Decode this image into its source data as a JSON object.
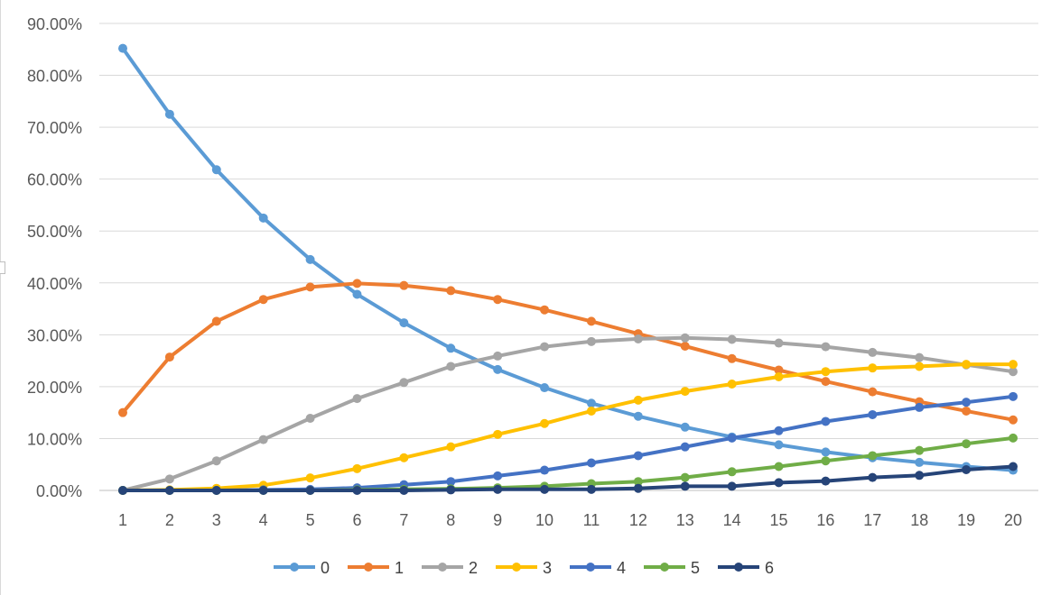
{
  "chart_data": {
    "type": "line",
    "title": "",
    "xlabel": "",
    "ylabel": "",
    "categories": [
      "1",
      "2",
      "3",
      "4",
      "5",
      "6",
      "7",
      "8",
      "9",
      "10",
      "11",
      "12",
      "13",
      "14",
      "15",
      "16",
      "17",
      "18",
      "19",
      "20"
    ],
    "y_ticks": [
      "0.00%",
      "10.00%",
      "20.00%",
      "30.00%",
      "40.00%",
      "50.00%",
      "60.00%",
      "70.00%",
      "80.00%",
      "90.00%"
    ],
    "ylim": [
      0,
      90
    ],
    "grid": true,
    "legend_position": "bottom",
    "series": [
      {
        "name": "0",
        "color": "#5B9BD5",
        "values": [
          85.2,
          72.5,
          61.8,
          52.5,
          44.5,
          37.8,
          32.3,
          27.4,
          23.3,
          19.8,
          16.8,
          14.3,
          12.2,
          10.3,
          8.8,
          7.4,
          6.3,
          5.4,
          4.6,
          3.9
        ]
      },
      {
        "name": "1",
        "color": "#ED7D31",
        "values": [
          15.0,
          25.7,
          32.6,
          36.8,
          39.2,
          39.9,
          39.5,
          38.5,
          36.8,
          34.8,
          32.6,
          30.2,
          27.8,
          25.4,
          23.2,
          21.0,
          19.0,
          17.1,
          15.3,
          13.6
        ]
      },
      {
        "name": "2",
        "color": "#A5A5A5",
        "values": [
          0.0,
          2.2,
          5.7,
          9.8,
          13.9,
          17.7,
          20.8,
          23.9,
          25.9,
          27.7,
          28.7,
          29.2,
          29.4,
          29.1,
          28.4,
          27.7,
          26.6,
          25.6,
          24.2,
          22.9
        ]
      },
      {
        "name": "3",
        "color": "#FFC000",
        "values": [
          0.0,
          0.1,
          0.4,
          1.0,
          2.4,
          4.2,
          6.3,
          8.4,
          10.8,
          12.9,
          15.3,
          17.4,
          19.1,
          20.5,
          21.9,
          22.9,
          23.6,
          23.9,
          24.3,
          24.3
        ]
      },
      {
        "name": "4",
        "color": "#4472C4",
        "values": [
          0.0,
          0.0,
          0.0,
          0.1,
          0.2,
          0.5,
          1.1,
          1.7,
          2.8,
          3.9,
          5.3,
          6.7,
          8.4,
          10.1,
          11.5,
          13.3,
          14.6,
          16.0,
          17.0,
          18.1
        ]
      },
      {
        "name": "5",
        "color": "#70AD47",
        "values": [
          0.0,
          0.0,
          0.0,
          0.0,
          0.0,
          0.1,
          0.2,
          0.3,
          0.5,
          0.8,
          1.3,
          1.7,
          2.5,
          3.6,
          4.6,
          5.7,
          6.7,
          7.7,
          9.0,
          10.1
        ]
      },
      {
        "name": "6",
        "color": "#264478",
        "values": [
          0.0,
          0.0,
          0.0,
          0.0,
          0.0,
          0.0,
          0.0,
          0.1,
          0.2,
          0.2,
          0.2,
          0.4,
          0.8,
          0.8,
          1.5,
          1.8,
          2.5,
          2.9,
          4.0,
          4.6
        ]
      }
    ]
  }
}
